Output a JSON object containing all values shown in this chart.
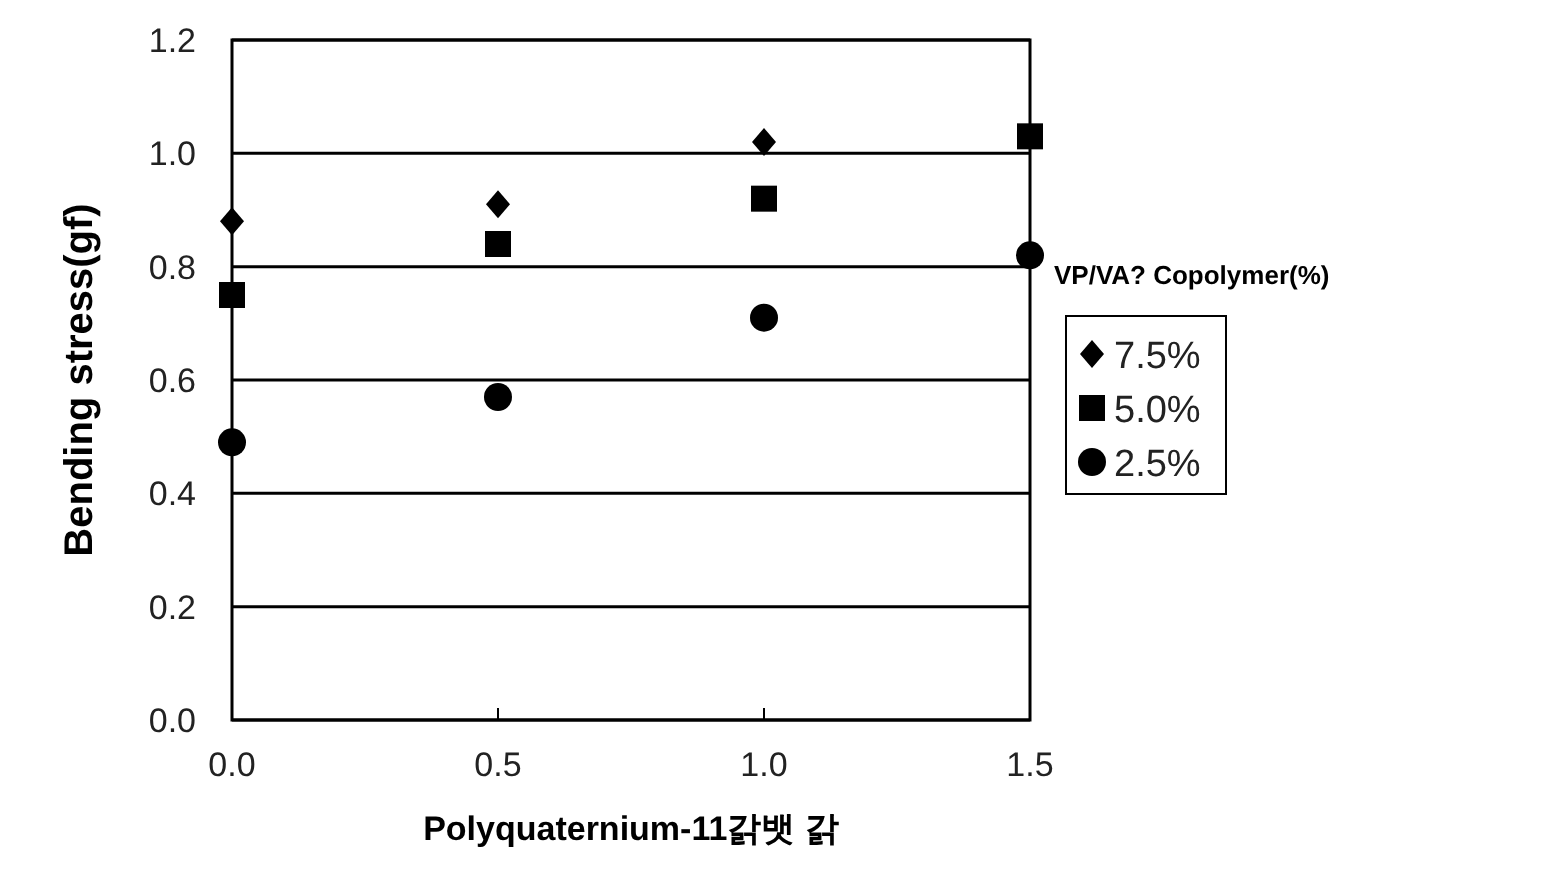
{
  "chart_data": {
    "type": "scatter",
    "xlabel": "Polyquaternium-11갉뱃 갉",
    "ylabel": "Bending stress(gf)",
    "legend_title": "VP/VA? Copolymer(%)",
    "x": [
      0,
      0.5,
      1.0,
      1.5
    ],
    "series": [
      {
        "name": "7.5%",
        "color": "#000000",
        "marker": "diamond",
        "values": [
          0.88,
          0.91,
          1.02,
          null
        ]
      },
      {
        "name": "5.0%",
        "color": "#000000",
        "marker": "square",
        "values": [
          0.75,
          0.84,
          0.92,
          1.03
        ]
      },
      {
        "name": "2.5%",
        "color": "#000000",
        "marker": "circle",
        "values": [
          0.49,
          0.57,
          0.71,
          0.82
        ]
      }
    ],
    "xlim": [
      0,
      1.5
    ],
    "xticks": [
      {
        "value": 0,
        "label": "0.0"
      },
      0.5,
      {
        "value": 1,
        "label": "1.0"
      },
      1.5
    ],
    "ylim": [
      0,
      1.2
    ],
    "yticks": [
      {
        "value": 0,
        "label": "0.0"
      },
      0.2,
      0.4,
      0.6,
      0.8,
      {
        "value": 1,
        "label": "1.0"
      },
      1.2
    ],
    "grid": "y",
    "legend": "right"
  }
}
